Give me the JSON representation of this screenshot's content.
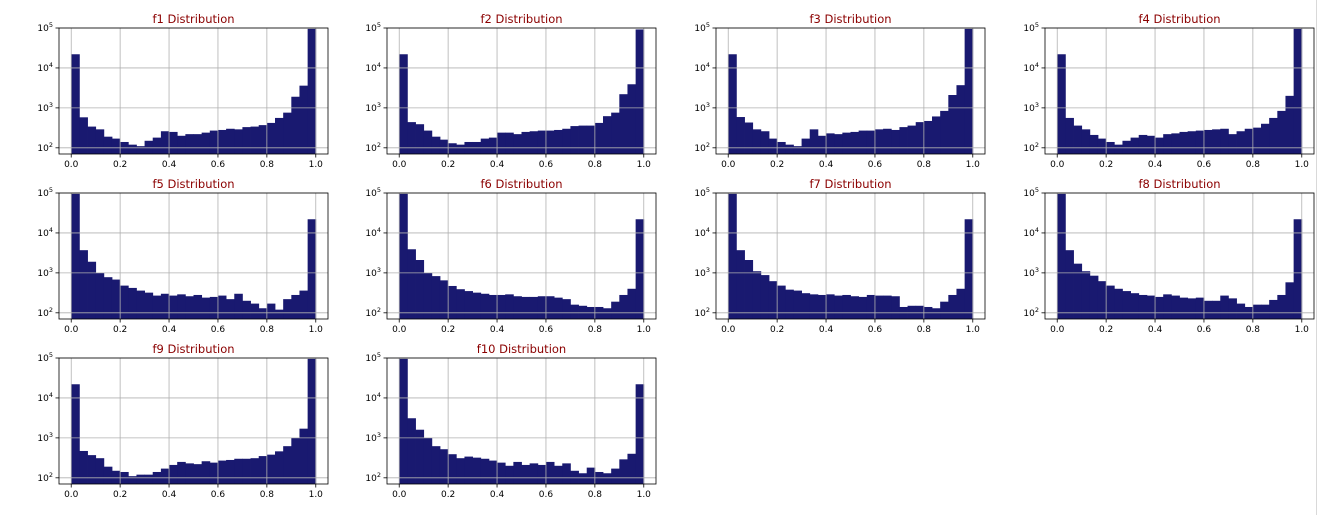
{
  "colors": {
    "bar": "#191970",
    "title": "#8b0000",
    "grid": "#b0b0b0",
    "axis": "#000000"
  },
  "chart_data": [
    {
      "type": "bar",
      "title": "f1 Distribution",
      "xlabel": "",
      "ylabel": "",
      "yscale": "log",
      "xlim": [
        -0.05,
        1.05
      ],
      "ylim": [
        70,
        100000
      ],
      "xticks": [
        "0.0",
        "0.2",
        "0.4",
        "0.6",
        "0.8",
        "1.0"
      ],
      "yticks": [
        {
          "base": "10",
          "exp": "2"
        },
        {
          "base": "10",
          "exp": "3"
        },
        {
          "base": "10",
          "exp": "4"
        },
        {
          "base": "10",
          "exp": "5"
        }
      ],
      "grid": true,
      "bin_edges": [
        0.0,
        0.0333,
        0.0667,
        0.1,
        0.1333,
        0.1667,
        0.2,
        0.2333,
        0.2667,
        0.3,
        0.3333,
        0.3667,
        0.4,
        0.4333,
        0.4667,
        0.5,
        0.5333,
        0.5667,
        0.6,
        0.6333,
        0.6667,
        0.7,
        0.7333,
        0.7667,
        0.8,
        0.8333,
        0.8667,
        0.9,
        0.9333,
        0.9667,
        1.0
      ],
      "values": [
        22000,
        580,
        340,
        290,
        190,
        170,
        140,
        120,
        110,
        150,
        180,
        260,
        250,
        200,
        220,
        220,
        240,
        270,
        280,
        300,
        290,
        330,
        340,
        370,
        420,
        560,
        760,
        1900,
        3600,
        95000
      ]
    },
    {
      "type": "bar",
      "title": "f2 Distribution",
      "xlabel": "",
      "ylabel": "",
      "yscale": "log",
      "xlim": [
        -0.05,
        1.05
      ],
      "ylim": [
        70,
        100000
      ],
      "xticks": [
        "0.0",
        "0.2",
        "0.4",
        "0.6",
        "0.8",
        "1.0"
      ],
      "yticks": [
        {
          "base": "10",
          "exp": "2"
        },
        {
          "base": "10",
          "exp": "3"
        },
        {
          "base": "10",
          "exp": "4"
        },
        {
          "base": "10",
          "exp": "5"
        }
      ],
      "grid": true,
      "bin_edges": [
        0.0,
        0.0333,
        0.0667,
        0.1,
        0.1333,
        0.1667,
        0.2,
        0.2333,
        0.2667,
        0.3,
        0.3333,
        0.3667,
        0.4,
        0.4333,
        0.4667,
        0.5,
        0.5333,
        0.5667,
        0.6,
        0.6333,
        0.6667,
        0.7,
        0.7333,
        0.7667,
        0.8,
        0.8333,
        0.8667,
        0.9,
        0.9333,
        0.9667,
        1.0
      ],
      "values": [
        22000,
        440,
        390,
        270,
        190,
        160,
        130,
        120,
        140,
        140,
        170,
        180,
        240,
        240,
        220,
        250,
        260,
        270,
        270,
        280,
        300,
        350,
        360,
        360,
        420,
        620,
        760,
        2200,
        3900,
        92000
      ]
    },
    {
      "type": "bar",
      "title": "f3 Distribution",
      "xlabel": "",
      "ylabel": "",
      "yscale": "log",
      "xlim": [
        -0.05,
        1.05
      ],
      "ylim": [
        70,
        100000
      ],
      "xticks": [
        "0.0",
        "0.2",
        "0.4",
        "0.6",
        "0.8",
        "1.0"
      ],
      "yticks": [
        {
          "base": "10",
          "exp": "2"
        },
        {
          "base": "10",
          "exp": "3"
        },
        {
          "base": "10",
          "exp": "4"
        },
        {
          "base": "10",
          "exp": "5"
        }
      ],
      "grid": true,
      "bin_edges": [
        0.0,
        0.0333,
        0.0667,
        0.1,
        0.1333,
        0.1667,
        0.2,
        0.2333,
        0.2667,
        0.3,
        0.3333,
        0.3667,
        0.4,
        0.4333,
        0.4667,
        0.5,
        0.5333,
        0.5667,
        0.6,
        0.6333,
        0.6667,
        0.7,
        0.7333,
        0.7667,
        0.8,
        0.8333,
        0.8667,
        0.9,
        0.9333,
        0.9667,
        1.0
      ],
      "values": [
        22000,
        590,
        430,
        290,
        260,
        170,
        140,
        120,
        110,
        170,
        290,
        200,
        230,
        220,
        240,
        250,
        270,
        270,
        290,
        300,
        280,
        330,
        360,
        440,
        470,
        610,
        840,
        2100,
        3700,
        95000
      ]
    },
    {
      "type": "bar",
      "title": "f4 Distribution",
      "xlabel": "",
      "ylabel": "",
      "yscale": "log",
      "xlim": [
        -0.05,
        1.05
      ],
      "ylim": [
        70,
        100000
      ],
      "xticks": [
        "0.0",
        "0.2",
        "0.4",
        "0.6",
        "0.8",
        "1.0"
      ],
      "yticks": [
        {
          "base": "10",
          "exp": "2"
        },
        {
          "base": "10",
          "exp": "3"
        },
        {
          "base": "10",
          "exp": "4"
        },
        {
          "base": "10",
          "exp": "5"
        }
      ],
      "grid": true,
      "bin_edges": [
        0.0,
        0.0333,
        0.0667,
        0.1,
        0.1333,
        0.1667,
        0.2,
        0.2333,
        0.2667,
        0.3,
        0.3333,
        0.3667,
        0.4,
        0.4333,
        0.4667,
        0.5,
        0.5333,
        0.5667,
        0.6,
        0.6333,
        0.6667,
        0.7,
        0.7333,
        0.7667,
        0.8,
        0.8333,
        0.8667,
        0.9,
        0.9333,
        0.9667,
        1.0
      ],
      "values": [
        22000,
        560,
        360,
        290,
        210,
        170,
        140,
        120,
        150,
        180,
        210,
        200,
        180,
        220,
        230,
        250,
        260,
        270,
        280,
        290,
        300,
        220,
        260,
        300,
        320,
        400,
        560,
        840,
        2000,
        95000
      ]
    },
    {
      "type": "bar",
      "title": "f5 Distribution",
      "xlabel": "",
      "ylabel": "",
      "yscale": "log",
      "xlim": [
        -0.05,
        1.05
      ],
      "ylim": [
        70,
        100000
      ],
      "xticks": [
        "0.0",
        "0.2",
        "0.4",
        "0.6",
        "0.8",
        "1.0"
      ],
      "yticks": [
        {
          "base": "10",
          "exp": "2"
        },
        {
          "base": "10",
          "exp": "3"
        },
        {
          "base": "10",
          "exp": "4"
        },
        {
          "base": "10",
          "exp": "5"
        }
      ],
      "grid": true,
      "bin_edges": [
        0.0,
        0.0333,
        0.0667,
        0.1,
        0.1333,
        0.1667,
        0.2,
        0.2333,
        0.2667,
        0.3,
        0.3333,
        0.3667,
        0.4,
        0.4333,
        0.4667,
        0.5,
        0.5333,
        0.5667,
        0.6,
        0.6333,
        0.6667,
        0.7,
        0.7333,
        0.7667,
        0.8,
        0.8333,
        0.8667,
        0.9,
        0.9333,
        0.9667,
        1.0
      ],
      "values": [
        95000,
        3700,
        1900,
        1000,
        780,
        680,
        480,
        420,
        360,
        320,
        270,
        300,
        270,
        290,
        260,
        280,
        240,
        250,
        270,
        220,
        300,
        200,
        170,
        130,
        170,
        120,
        220,
        280,
        360,
        22000
      ]
    },
    {
      "type": "bar",
      "title": "f6 Distribution",
      "xlabel": "",
      "ylabel": "",
      "yscale": "log",
      "xlim": [
        -0.05,
        1.05
      ],
      "ylim": [
        70,
        100000
      ],
      "xticks": [
        "0.0",
        "0.2",
        "0.4",
        "0.6",
        "0.8",
        "1.0"
      ],
      "yticks": [
        {
          "base": "10",
          "exp": "2"
        },
        {
          "base": "10",
          "exp": "3"
        },
        {
          "base": "10",
          "exp": "4"
        },
        {
          "base": "10",
          "exp": "5"
        }
      ],
      "grid": true,
      "bin_edges": [
        0.0,
        0.0333,
        0.0667,
        0.1,
        0.1333,
        0.1667,
        0.2,
        0.2333,
        0.2667,
        0.3,
        0.3333,
        0.3667,
        0.4,
        0.4333,
        0.4667,
        0.5,
        0.5333,
        0.5667,
        0.6,
        0.6333,
        0.6667,
        0.7,
        0.7333,
        0.7667,
        0.8,
        0.8333,
        0.8667,
        0.9,
        0.9333,
        0.9667,
        1.0
      ],
      "values": [
        95000,
        3900,
        2100,
        1000,
        830,
        650,
        470,
        390,
        350,
        320,
        300,
        280,
        280,
        290,
        260,
        250,
        250,
        260,
        260,
        240,
        220,
        160,
        150,
        140,
        140,
        130,
        190,
        280,
        400,
        22000
      ]
    },
    {
      "type": "bar",
      "title": "f7 Distribution",
      "xlabel": "",
      "ylabel": "",
      "yscale": "log",
      "xlim": [
        -0.05,
        1.05
      ],
      "ylim": [
        70,
        100000
      ],
      "xticks": [
        "0.0",
        "0.2",
        "0.4",
        "0.6",
        "0.8",
        "1.0"
      ],
      "yticks": [
        {
          "base": "10",
          "exp": "2"
        },
        {
          "base": "10",
          "exp": "3"
        },
        {
          "base": "10",
          "exp": "4"
        },
        {
          "base": "10",
          "exp": "5"
        }
      ],
      "grid": true,
      "bin_edges": [
        0.0,
        0.0333,
        0.0667,
        0.1,
        0.1333,
        0.1667,
        0.2,
        0.2333,
        0.2667,
        0.3,
        0.3333,
        0.3667,
        0.4,
        0.4333,
        0.4667,
        0.5,
        0.5333,
        0.5667,
        0.6,
        0.6333,
        0.6667,
        0.7,
        0.7333,
        0.7667,
        0.8,
        0.8333,
        0.8667,
        0.9,
        0.9333,
        0.9667,
        1.0
      ],
      "values": [
        95000,
        3700,
        2100,
        1100,
        880,
        620,
        480,
        380,
        360,
        310,
        290,
        280,
        290,
        270,
        280,
        260,
        250,
        280,
        270,
        270,
        260,
        140,
        150,
        150,
        140,
        130,
        190,
        280,
        400,
        22000
      ]
    },
    {
      "type": "bar",
      "title": "f8 Distribution",
      "xlabel": "",
      "ylabel": "",
      "yscale": "log",
      "xlim": [
        -0.05,
        1.05
      ],
      "ylim": [
        70,
        100000
      ],
      "xticks": [
        "0.0",
        "0.2",
        "0.4",
        "0.6",
        "0.8",
        "1.0"
      ],
      "yticks": [
        {
          "base": "10",
          "exp": "2"
        },
        {
          "base": "10",
          "exp": "3"
        },
        {
          "base": "10",
          "exp": "4"
        },
        {
          "base": "10",
          "exp": "5"
        }
      ],
      "grid": true,
      "bin_edges": [
        0.0,
        0.0333,
        0.0667,
        0.1,
        0.1333,
        0.1667,
        0.2,
        0.2333,
        0.2667,
        0.3,
        0.3333,
        0.3667,
        0.4,
        0.4333,
        0.4667,
        0.5,
        0.5333,
        0.5667,
        0.6,
        0.6333,
        0.6667,
        0.7,
        0.7333,
        0.7667,
        0.8,
        0.8333,
        0.8667,
        0.9,
        0.9333,
        0.9667,
        1.0
      ],
      "values": [
        95000,
        3700,
        1700,
        1100,
        850,
        620,
        480,
        400,
        350,
        310,
        280,
        270,
        250,
        290,
        270,
        240,
        230,
        240,
        200,
        200,
        270,
        230,
        170,
        140,
        160,
        160,
        210,
        280,
        580,
        22000
      ]
    },
    {
      "type": "bar",
      "title": "f9 Distribution",
      "xlabel": "",
      "ylabel": "",
      "yscale": "log",
      "xlim": [
        -0.05,
        1.05
      ],
      "ylim": [
        70,
        100000
      ],
      "xticks": [
        "0.0",
        "0.2",
        "0.4",
        "0.6",
        "0.8",
        "1.0"
      ],
      "yticks": [
        {
          "base": "10",
          "exp": "2"
        },
        {
          "base": "10",
          "exp": "3"
        },
        {
          "base": "10",
          "exp": "4"
        },
        {
          "base": "10",
          "exp": "5"
        }
      ],
      "grid": true,
      "bin_edges": [
        0.0,
        0.0333,
        0.0667,
        0.1,
        0.1333,
        0.1667,
        0.2,
        0.2333,
        0.2667,
        0.3,
        0.3333,
        0.3667,
        0.4,
        0.4333,
        0.4667,
        0.5,
        0.5333,
        0.5667,
        0.6,
        0.6333,
        0.6667,
        0.7,
        0.7333,
        0.7667,
        0.8,
        0.8333,
        0.8667,
        0.9,
        0.9333,
        0.9667,
        1.0
      ],
      "values": [
        22000,
        470,
        370,
        310,
        190,
        150,
        140,
        110,
        120,
        120,
        140,
        170,
        210,
        250,
        230,
        220,
        260,
        240,
        270,
        280,
        300,
        300,
        310,
        350,
        380,
        460,
        620,
        1000,
        1700,
        95000
      ]
    },
    {
      "type": "bar",
      "title": "f10 Distribution",
      "xlabel": "",
      "ylabel": "",
      "yscale": "log",
      "xlim": [
        -0.05,
        1.05
      ],
      "ylim": [
        70,
        100000
      ],
      "xticks": [
        "0.0",
        "0.2",
        "0.4",
        "0.6",
        "0.8",
        "1.0"
      ],
      "yticks": [
        {
          "base": "10",
          "exp": "2"
        },
        {
          "base": "10",
          "exp": "3"
        },
        {
          "base": "10",
          "exp": "4"
        },
        {
          "base": "10",
          "exp": "5"
        }
      ],
      "grid": true,
      "bin_edges": [
        0.0,
        0.0333,
        0.0667,
        0.1,
        0.1333,
        0.1667,
        0.2,
        0.2333,
        0.2667,
        0.3,
        0.3333,
        0.3667,
        0.4,
        0.4333,
        0.4667,
        0.5,
        0.5333,
        0.5667,
        0.6,
        0.6333,
        0.6667,
        0.7,
        0.7333,
        0.7667,
        0.8,
        0.8333,
        0.8667,
        0.9,
        0.9333,
        0.9667,
        1.0
      ],
      "values": [
        95000,
        3100,
        1600,
        1000,
        620,
        520,
        390,
        310,
        340,
        320,
        300,
        270,
        240,
        200,
        250,
        210,
        230,
        210,
        250,
        200,
        230,
        150,
        130,
        180,
        140,
        130,
        170,
        290,
        400,
        22000
      ]
    }
  ]
}
